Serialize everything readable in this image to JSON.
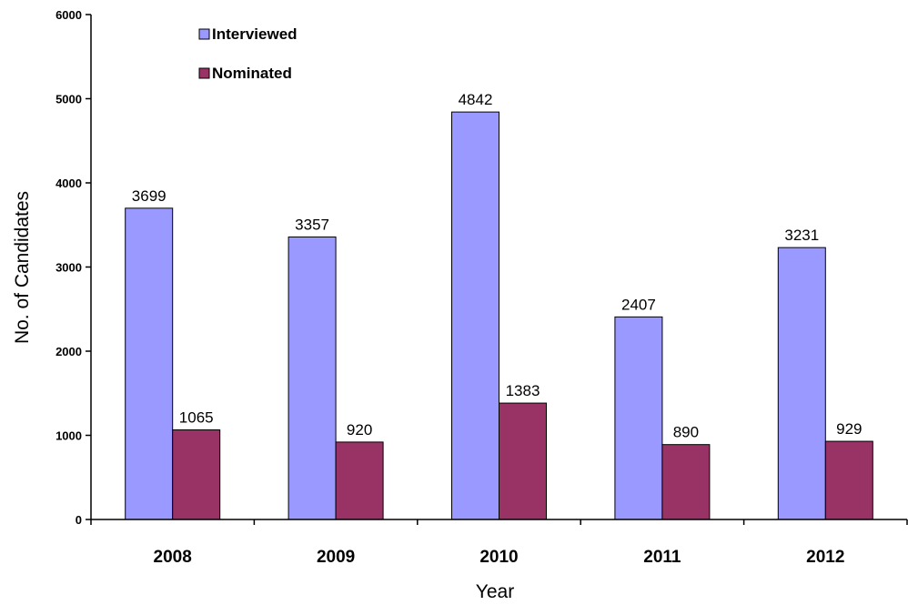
{
  "chart_data": {
    "type": "bar",
    "categories": [
      "2008",
      "2009",
      "2010",
      "2011",
      "2012"
    ],
    "series": [
      {
        "name": "Interviewed",
        "color": "#9999ff",
        "values": [
          3699,
          3357,
          4842,
          2407,
          3231
        ]
      },
      {
        "name": "Nominated",
        "color": "#993366",
        "values": [
          1065,
          920,
          1383,
          890,
          929
        ]
      }
    ],
    "xlabel": "Year",
    "ylabel": "No. of Candidates",
    "ylim": [
      0,
      6000
    ],
    "yticks": [
      0,
      1000,
      2000,
      3000,
      4000,
      5000,
      6000
    ],
    "grid": false,
    "legend_position": "top-left",
    "data_labels": true
  }
}
